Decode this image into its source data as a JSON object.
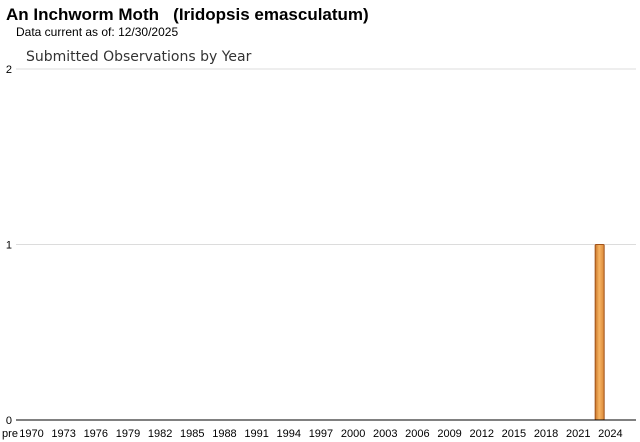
{
  "header": {
    "common_name": "An Inchworm Moth",
    "scientific_name": "(Iridopsis emasculatum)",
    "data_current_label": "Data current as of:",
    "data_current_date": "12/30/2025"
  },
  "chart_data": {
    "type": "bar",
    "title": "Submitted Observations by Year",
    "xlabel": "",
    "ylabel": "",
    "ylim": [
      0,
      2
    ],
    "y_ticks": [
      0,
      1,
      2
    ],
    "x_tick_labels": [
      "pre",
      "1970",
      "1973",
      "1976",
      "1979",
      "1982",
      "1985",
      "1988",
      "1991",
      "1994",
      "1997",
      "2000",
      "2003",
      "2006",
      "2009",
      "2012",
      "2015",
      "2018",
      "2021",
      "2024"
    ],
    "categories": [
      "2023"
    ],
    "values": [
      1
    ],
    "grid": true,
    "bar_color": "#f0a050",
    "bar_edge_color": "#a0521a"
  }
}
